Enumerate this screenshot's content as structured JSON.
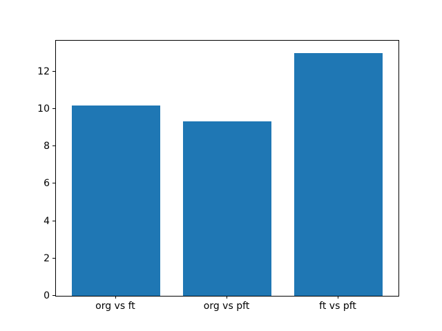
{
  "chart_data": {
    "type": "bar",
    "categories": [
      "org vs ft",
      "org vs pft",
      "ft vs pft"
    ],
    "values": [
      10.2,
      9.35,
      13.0
    ],
    "title": "",
    "xlabel": "",
    "ylabel": "",
    "ylim": [
      0,
      13.65
    ],
    "xlim": [
      -0.54,
      2.54
    ],
    "yticks": [
      0,
      2,
      4,
      6,
      8,
      10,
      12
    ],
    "bar_width": 0.8,
    "bar_color": "#1f77b4",
    "frame_color": "#000000",
    "background_color": "#ffffff",
    "grid": false,
    "legend": null
  }
}
